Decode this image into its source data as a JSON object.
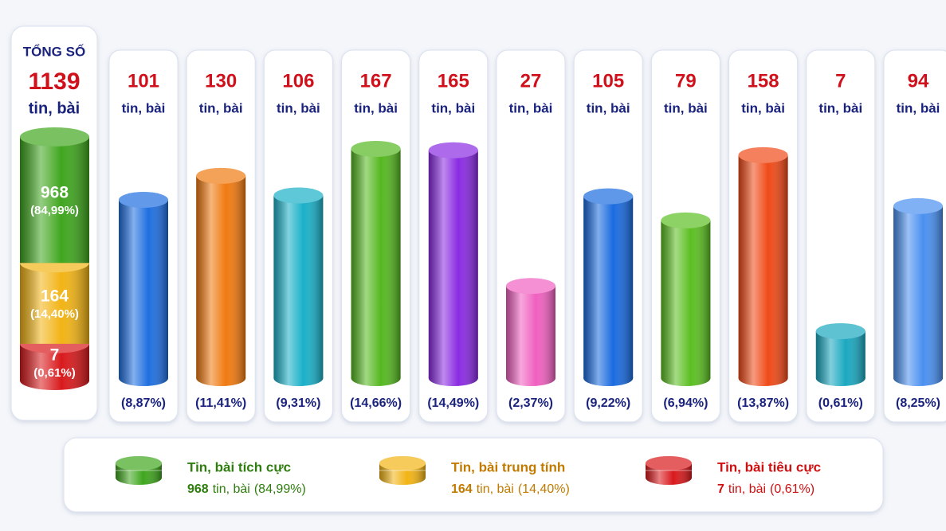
{
  "chart_data": {
    "type": "bar",
    "total_label": "TỔNG SỐ",
    "total": 1139,
    "unit": "tin, bài",
    "breakdown": [
      {
        "name": "Tin, bài tích cực",
        "color": "#3fa61e",
        "label_color": "#2e7d0e",
        "value": 968,
        "percent": 84.99,
        "percent_label": "(84,99%)"
      },
      {
        "name": "Tin, bài trung tính",
        "color": "#f2b415",
        "label_color": "#c27a00",
        "value": 164,
        "percent": 14.4,
        "percent_label": "(14,40%)"
      },
      {
        "name": "Tin, bài tiêu cực",
        "color": "#d9191c",
        "label_color": "#d01010",
        "value": 7,
        "percent": 0.61,
        "percent_label": "(0,61%)"
      }
    ],
    "values": [
      101,
      130,
      106,
      167,
      165,
      27,
      105,
      79,
      158,
      7,
      94
    ],
    "colors": [
      "#1f6fe0",
      "#f07a10",
      "#1ab0c8",
      "#55b820",
      "#8a2be2",
      "#f060c0",
      "#1a6be0",
      "#5cbf22",
      "#f04a18",
      "#1aa8c0",
      "#4a90f0"
    ],
    "percents": [
      8.87,
      11.41,
      9.31,
      14.66,
      14.49,
      2.37,
      9.22,
      6.94,
      13.87,
      0.61,
      8.25
    ],
    "percent_labels": [
      "(8,87%)",
      "(11,41%)",
      "(9,31%)",
      "(14,66%)",
      "(14,49%)",
      "(2,37%)",
      "(9,22%)",
      "(6,94%)",
      "(13,87%)",
      "(0,61%)",
      "(8,25%)"
    ]
  }
}
